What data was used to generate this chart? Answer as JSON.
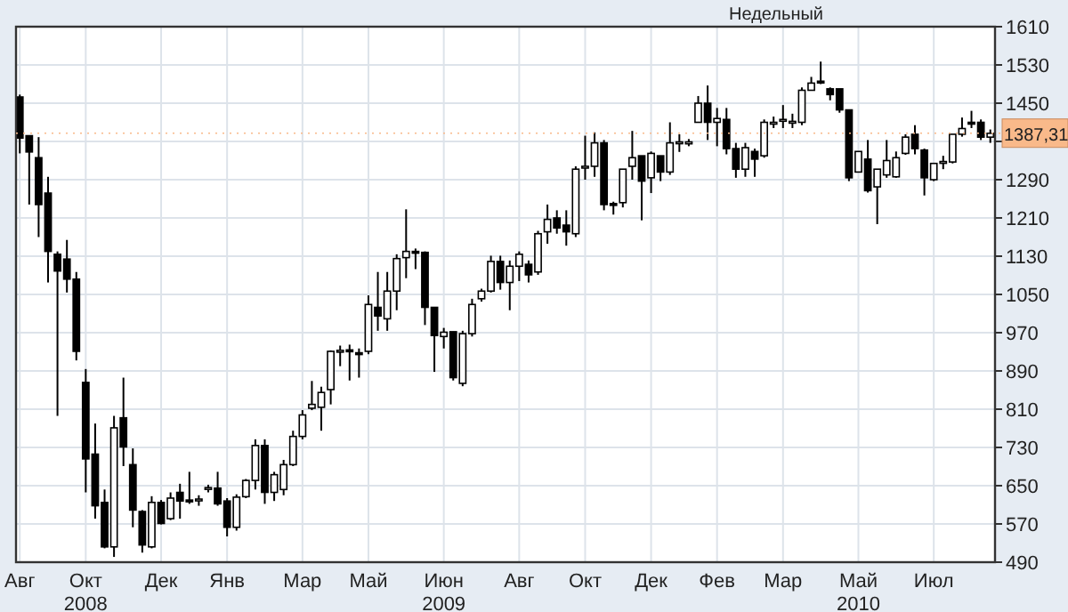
{
  "chart_data": {
    "type": "candlestick",
    "title": "Недельный",
    "color": "#000000",
    "grid": true,
    "categories": [
      "Авг",
      null,
      null,
      null,
      null,
      null,
      null,
      "Окт\n2008",
      null,
      null,
      null,
      null,
      null,
      null,
      null,
      "Дек",
      null,
      null,
      null,
      null,
      null,
      null,
      "Янв",
      null,
      null,
      null,
      null,
      null,
      null,
      null,
      "Мар",
      null,
      null,
      null,
      null,
      null,
      null,
      "Май",
      null,
      null,
      null,
      null,
      null,
      null,
      null,
      "Июн\n2009",
      null,
      null,
      null,
      null,
      null,
      null,
      null,
      "Авг",
      null,
      null,
      null,
      null,
      null,
      null,
      "Окт",
      null,
      null,
      null,
      null,
      null,
      null,
      "Дек",
      null,
      null,
      null,
      null,
      null,
      null,
      "Фев",
      null,
      null,
      null,
      null,
      null,
      null,
      "Мар",
      null,
      null,
      null,
      null,
      null,
      null,
      null,
      "Май\n2010",
      null,
      null,
      null,
      null,
      null,
      null,
      null,
      "Июл",
      null,
      null,
      null,
      null,
      null,
      null
    ],
    "ohlc": [
      [
        1463,
        1468,
        1345,
        1377
      ],
      [
        1382,
        1382,
        1238,
        1348
      ],
      [
        1336,
        1379,
        1170,
        1238
      ],
      [
        1262,
        1296,
        1075,
        1140
      ],
      [
        1134,
        1140,
        796,
        1099
      ],
      [
        1124,
        1164,
        1054,
        1082
      ],
      [
        1082,
        1097,
        912,
        931
      ],
      [
        866,
        894,
        636,
        706
      ],
      [
        716,
        780,
        581,
        608
      ],
      [
        615,
        642,
        519,
        522
      ],
      [
        522,
        796,
        501,
        771
      ],
      [
        792,
        876,
        691,
        731
      ],
      [
        694,
        728,
        563,
        599
      ],
      [
        596,
        599,
        510,
        526
      ],
      [
        522,
        628,
        519,
        615
      ],
      [
        615,
        620,
        569,
        571
      ],
      [
        581,
        636,
        578,
        624
      ],
      [
        636,
        654,
        581,
        618
      ],
      [
        620,
        679,
        612,
        618
      ],
      [
        620,
        630,
        608,
        622
      ],
      [
        644,
        652,
        636,
        646
      ],
      [
        645,
        679,
        608,
        612
      ],
      [
        618,
        624,
        544,
        563
      ],
      [
        563,
        632,
        556,
        626
      ],
      [
        627,
        664,
        624,
        661
      ],
      [
        661,
        747,
        642,
        734
      ],
      [
        734,
        747,
        612,
        636
      ],
      [
        636,
        679,
        618,
        673
      ],
      [
        642,
        704,
        630,
        694
      ],
      [
        694,
        765,
        691,
        753
      ],
      [
        753,
        808,
        747,
        798
      ],
      [
        812,
        869,
        808,
        820
      ],
      [
        814,
        857,
        765,
        845
      ],
      [
        851,
        933,
        820,
        931
      ],
      [
        931,
        943,
        900,
        933
      ],
      [
        934,
        945,
        870,
        933
      ],
      [
        928,
        937,
        876,
        926
      ],
      [
        931,
        1048,
        925,
        1029
      ],
      [
        1023,
        1097,
        974,
        1005
      ],
      [
        999,
        1097,
        974,
        1057
      ],
      [
        1057,
        1134,
        1017,
        1125
      ],
      [
        1127,
        1228,
        1084,
        1140
      ],
      [
        1140,
        1146,
        1103,
        1138
      ],
      [
        1138,
        1140,
        986,
        1023
      ],
      [
        1023,
        1023,
        888,
        964
      ],
      [
        962,
        980,
        937,
        971
      ],
      [
        972,
        972,
        870,
        876
      ],
      [
        864,
        974,
        858,
        968
      ],
      [
        968,
        1041,
        962,
        1029
      ],
      [
        1041,
        1062,
        1035,
        1057
      ],
      [
        1057,
        1131,
        1054,
        1119
      ],
      [
        1119,
        1131,
        1060,
        1075
      ],
      [
        1075,
        1121,
        1017,
        1109
      ],
      [
        1109,
        1140,
        1078,
        1134
      ],
      [
        1113,
        1121,
        1075,
        1091
      ],
      [
        1097,
        1183,
        1091,
        1177
      ],
      [
        1181,
        1238,
        1156,
        1207
      ],
      [
        1210,
        1226,
        1177,
        1189
      ],
      [
        1195,
        1226,
        1152,
        1181
      ],
      [
        1177,
        1318,
        1170,
        1312
      ],
      [
        1316,
        1382,
        1290,
        1318
      ],
      [
        1318,
        1389,
        1296,
        1367
      ],
      [
        1367,
        1373,
        1226,
        1238
      ],
      [
        1240,
        1244,
        1217,
        1238
      ],
      [
        1242,
        1312,
        1232,
        1312
      ],
      [
        1318,
        1392,
        1290,
        1336
      ],
      [
        1340,
        1340,
        1205,
        1287
      ],
      [
        1294,
        1349,
        1262,
        1345
      ],
      [
        1340,
        1340,
        1287,
        1306
      ],
      [
        1306,
        1410,
        1300,
        1367
      ],
      [
        1367,
        1385,
        1348,
        1369
      ],
      [
        1365,
        1375,
        1360,
        1369
      ],
      [
        1410,
        1465,
        1410,
        1450
      ],
      [
        1450,
        1487,
        1373,
        1410
      ],
      [
        1410,
        1440,
        1360,
        1418
      ],
      [
        1416,
        1440,
        1343,
        1355
      ],
      [
        1355,
        1367,
        1294,
        1312
      ],
      [
        1312,
        1367,
        1296,
        1357
      ],
      [
        1349,
        1355,
        1296,
        1333
      ],
      [
        1340,
        1416,
        1336,
        1410
      ],
      [
        1408,
        1422,
        1398,
        1410
      ],
      [
        1414,
        1446,
        1398,
        1416
      ],
      [
        1410,
        1428,
        1398,
        1412
      ],
      [
        1410,
        1483,
        1404,
        1477
      ],
      [
        1477,
        1505,
        1477,
        1492
      ],
      [
        1496,
        1537,
        1490,
        1495
      ],
      [
        1480,
        1483,
        1456,
        1468
      ],
      [
        1480,
        1480,
        1430,
        1436
      ],
      [
        1436,
        1436,
        1287,
        1294
      ],
      [
        1306,
        1349,
        1306,
        1349
      ],
      [
        1333,
        1373,
        1263,
        1267
      ],
      [
        1275,
        1312,
        1197,
        1312
      ],
      [
        1300,
        1373,
        1294,
        1330
      ],
      [
        1296,
        1349,
        1294,
        1336
      ],
      [
        1345,
        1385,
        1342,
        1379
      ],
      [
        1385,
        1404,
        1343,
        1355
      ],
      [
        1352,
        1355,
        1257,
        1294
      ],
      [
        1290,
        1324,
        1287,
        1324
      ],
      [
        1327,
        1340,
        1312,
        1328
      ],
      [
        1327,
        1385,
        1324,
        1385
      ],
      [
        1385,
        1420,
        1380,
        1397
      ],
      [
        1410,
        1434,
        1398,
        1408
      ],
      [
        1410,
        1416,
        1373,
        1379
      ],
      [
        1379,
        1395,
        1367,
        1387
      ]
    ],
    "ylim": [
      490,
      1610
    ],
    "yticks": [
      490,
      570,
      650,
      730,
      810,
      890,
      970,
      1050,
      1130,
      1210,
      1290,
      {
        "value": 1370,
        "label": null
      },
      1450,
      1530,
      1610
    ],
    "ref_lines": [
      {
        "axis": "y",
        "value": 1387.31,
        "label": "1387,31",
        "color": "#f9b98a"
      }
    ]
  }
}
